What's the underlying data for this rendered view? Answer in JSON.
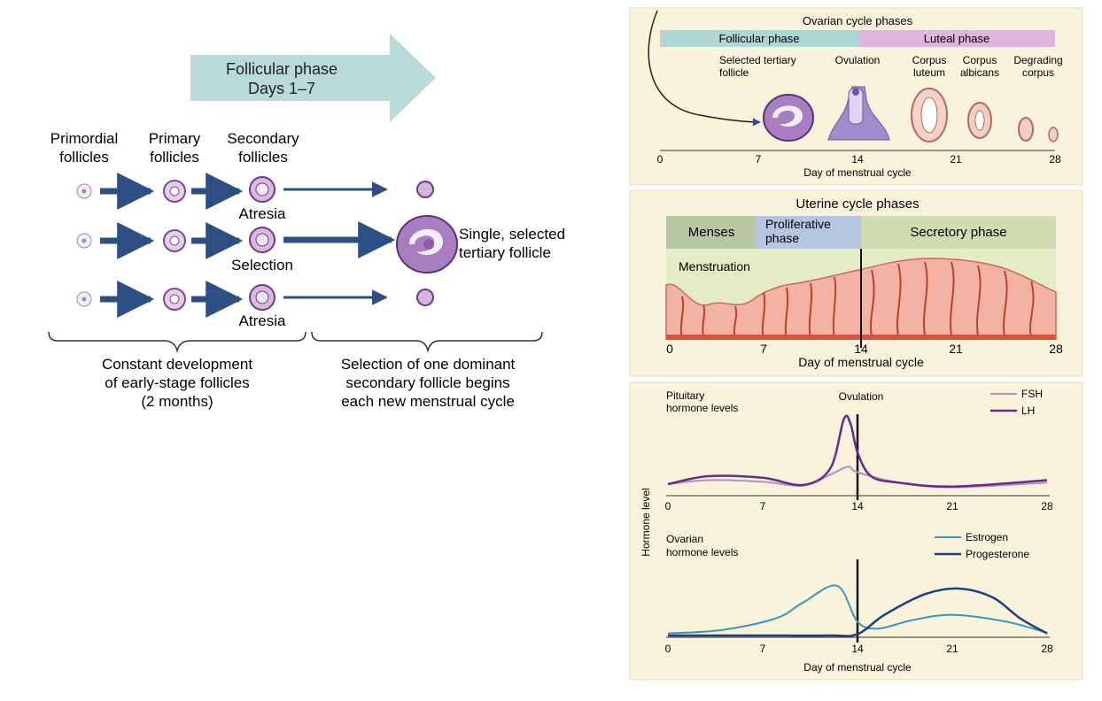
{
  "left": {
    "arrow": {
      "line1": "Follicular phase",
      "line2": "Days 1–7"
    },
    "columns": {
      "primordial": [
        "Primordial",
        "follicles"
      ],
      "primary": [
        "Primary",
        "follicles"
      ],
      "secondary": [
        "Secondary",
        "follicles"
      ]
    },
    "row_labels": {
      "atresia_top": "Atresia",
      "selection": "Selection",
      "atresia_bottom": "Atresia"
    },
    "tertiary_label": [
      "Single, selected",
      "tertiary follicle"
    ],
    "caption_left": [
      "Constant development",
      "of early-stage follicles",
      "(2 months)"
    ],
    "caption_right": [
      "Selection of one dominant",
      "secondary follicle begins",
      "each new menstrual cycle"
    ]
  },
  "ovarian": {
    "title": "Ovarian cycle phases",
    "phase_follicular": "Follicular phase",
    "phase_luteal": "Luteal phase",
    "stage_labels": {
      "selected": [
        "Selected tertiary",
        "follicle"
      ],
      "ovulation": "Ovulation",
      "corpus_luteum": [
        "Corpus",
        "luteum"
      ],
      "corpus_albicans": [
        "Corpus",
        "albicans"
      ],
      "degrading": [
        "Degrading",
        "corpus"
      ]
    },
    "ticks": [
      "0",
      "7",
      "14",
      "21",
      "28"
    ],
    "xlabel": "Day of menstrual cycle",
    "colors": {
      "follicular": "#aed6d5",
      "luteal": "#dcb6dc",
      "panel": "#f9f3dc"
    }
  },
  "uterine": {
    "title": "Uterine cycle phases",
    "phase_menses": "Menses",
    "phase_proliferative": [
      "Proliferative",
      "phase"
    ],
    "phase_secretory": "Secretory phase",
    "menstruation": "Menstruation",
    "ticks": [
      "0",
      "7",
      "14",
      "21",
      "28"
    ],
    "xlabel": "Day of menstrual cycle",
    "colors": {
      "menses": "#b6c7a3",
      "proliferative": "#b7c6e0",
      "secretory": "#cfdcb0",
      "field": "#e4ecc5"
    }
  },
  "hormones": {
    "ylabel": "Hormone level",
    "pituitary": {
      "label": [
        "Pituitary",
        "hormone levels"
      ],
      "ovulation": "Ovulation",
      "ticks": [
        "0",
        "7",
        "14",
        "21",
        "28"
      ]
    },
    "ovarian": {
      "label": [
        "Ovarian",
        "hormone levels"
      ],
      "ticks": [
        "0",
        "7",
        "14",
        "21",
        "28"
      ]
    },
    "xlabel": "Day of menstrual cycle"
  },
  "chart_data": [
    {
      "type": "line",
      "ylabel": "Hormone level",
      "xlim": [
        0,
        28
      ],
      "ylim": [
        0,
        1
      ],
      "legend": "top-right",
      "marker_day": 14,
      "series": [
        {
          "name": "FSH",
          "color": "#b58fc0",
          "x": [
            0,
            3,
            7,
            10,
            12,
            13.3,
            14,
            17,
            21,
            28
          ],
          "values": [
            0.1,
            0.15,
            0.13,
            0.08,
            0.22,
            0.32,
            0.25,
            0.12,
            0.06,
            0.12
          ]
        },
        {
          "name": "LH",
          "color": "#6a2a8c",
          "x": [
            0,
            3,
            7,
            10,
            12,
            13,
            13.5,
            14,
            15,
            17,
            21,
            28
          ],
          "values": [
            0.1,
            0.2,
            0.18,
            0.09,
            0.3,
            0.92,
            0.85,
            0.5,
            0.2,
            0.12,
            0.07,
            0.15
          ]
        }
      ]
    },
    {
      "type": "line",
      "ylabel": "Hormone level",
      "xlim": [
        0,
        28
      ],
      "ylim": [
        0,
        1
      ],
      "legend": "top-right",
      "marker_day": 14,
      "series": [
        {
          "name": "Estrogen",
          "color": "#3d96b8",
          "x": [
            0,
            4,
            8,
            10,
            12.5,
            14,
            15.5,
            18,
            21,
            25,
            28
          ],
          "values": [
            0.03,
            0.08,
            0.25,
            0.48,
            0.72,
            0.2,
            0.1,
            0.22,
            0.3,
            0.2,
            0.04
          ]
        },
        {
          "name": "Progesterone",
          "color": "#1e3f82",
          "x": [
            0,
            7,
            12,
            14,
            16,
            19,
            21.5,
            24,
            26,
            28
          ],
          "values": [
            0.0,
            0.0,
            0.0,
            0.02,
            0.3,
            0.6,
            0.68,
            0.55,
            0.25,
            0.03
          ]
        }
      ]
    }
  ]
}
